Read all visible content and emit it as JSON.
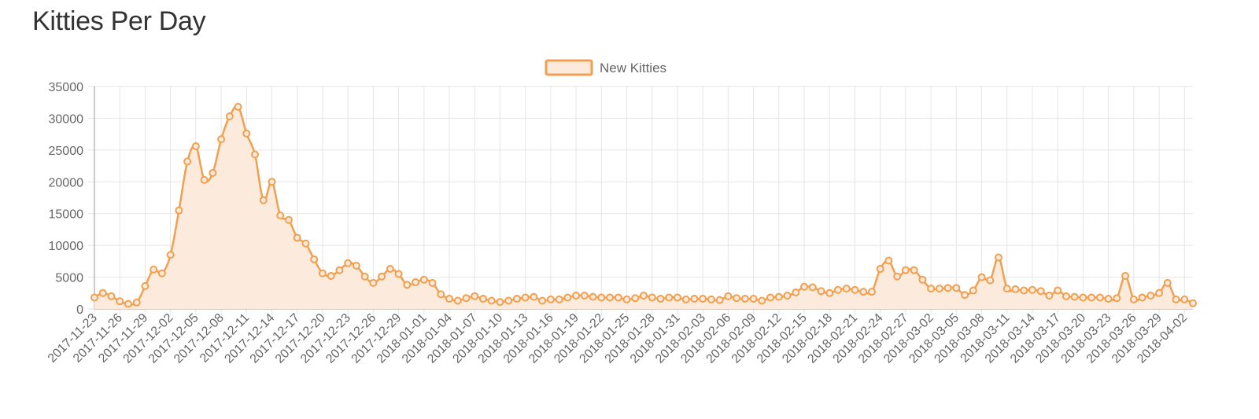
{
  "page": {
    "title": "Kitties Per Day"
  },
  "chart_data": {
    "type": "line",
    "title": "",
    "xlabel": "",
    "ylabel": "",
    "ylim": [
      0,
      35000
    ],
    "yticks": [
      0,
      5000,
      10000,
      15000,
      20000,
      25000,
      30000,
      35000
    ],
    "grid": true,
    "legend": "top-center",
    "fill": true,
    "colors": {
      "line": "#f0a050",
      "fill": "#fcebdc",
      "grid": "#e5e5e5",
      "axis": "#999999"
    },
    "x_tick_labels": [
      "2017-11-23",
      "2017-11-26",
      "2017-11-29",
      "2017-12-02",
      "2017-12-05",
      "2017-12-08",
      "2017-12-11",
      "2017-12-14",
      "2017-12-17",
      "2017-12-20",
      "2017-12-23",
      "2017-12-26",
      "2017-12-29",
      "2018-01-01",
      "2018-01-04",
      "2018-01-07",
      "2018-01-10",
      "2018-01-13",
      "2018-01-16",
      "2018-01-19",
      "2018-01-22",
      "2018-01-25",
      "2018-01-28",
      "2018-01-31",
      "2018-02-03",
      "2018-02-06",
      "2018-02-09",
      "2018-02-12",
      "2018-02-15",
      "2018-02-18",
      "2018-02-21",
      "2018-02-24",
      "2018-02-27",
      "2018-03-02",
      "2018-03-05",
      "2018-03-08",
      "2018-03-11",
      "2018-03-14",
      "2018-03-17",
      "2018-03-20",
      "2018-03-23",
      "2018-03-26",
      "2018-03-29",
      "2018-04-02"
    ],
    "series": [
      {
        "name": "New Kitties",
        "values": [
          1800,
          2500,
          2000,
          1200,
          800,
          1000,
          3600,
          6200,
          5600,
          8500,
          15500,
          23200,
          25600,
          20300,
          21400,
          26700,
          30300,
          31800,
          27600,
          24300,
          17100,
          20000,
          14700,
          14000,
          11200,
          10300,
          7800,
          5600,
          5200,
          6100,
          7200,
          6800,
          5100,
          4100,
          5100,
          6300,
          5500,
          3800,
          4200,
          4600,
          4100,
          2300,
          1600,
          1300,
          1700,
          2000,
          1600,
          1300,
          1100,
          1300,
          1600,
          1800,
          1900,
          1300,
          1500,
          1500,
          1800,
          2100,
          2100,
          1900,
          1800,
          1800,
          1800,
          1500,
          1700,
          2100,
          1800,
          1600,
          1800,
          1800,
          1500,
          1600,
          1600,
          1500,
          1400,
          2000,
          1700,
          1600,
          1600,
          1300,
          1800,
          1900,
          2100,
          2600,
          3500,
          3400,
          2800,
          2500,
          3000,
          3200,
          3000,
          2700,
          2700,
          6300,
          7600,
          5100,
          6100,
          6100,
          4600,
          3200,
          3200,
          3300,
          3300,
          2200,
          2900,
          5000,
          4500,
          8100,
          3200,
          3100,
          2900,
          3000,
          2800,
          2100,
          2900,
          2000,
          1900,
          1800,
          1800,
          1800,
          1600,
          1700,
          5200,
          1500,
          1800,
          2100,
          2500,
          4100,
          1500,
          1500,
          900
        ]
      }
    ]
  }
}
